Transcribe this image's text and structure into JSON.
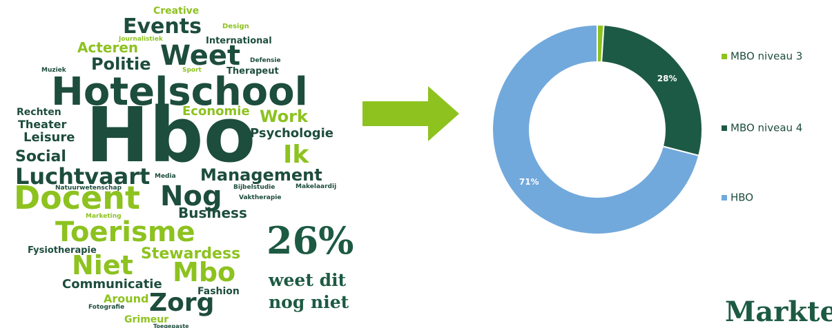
{
  "word_cloud": {
    "words": [
      "Creative",
      "Events",
      "Design",
      "Journalistiek",
      "International",
      "Acteren",
      "Weet",
      "Defensie",
      "Politie",
      "Muziek",
      "Sport",
      "Therapeut",
      "Hotelschool",
      "Rechten",
      "Economie",
      "Work",
      "Theater",
      "Hbo",
      "Leisure",
      "Psychologie",
      "Social",
      "Ik",
      "Luchtvaart",
      "Media",
      "Management",
      "Natuurwetenschap",
      "Nog",
      "Bijbelstudie",
      "Makelaardij",
      "Docent",
      "Vaktherapie",
      "Business",
      "Marketing",
      "Toerisme",
      "Fysiotherapie",
      "Stewardess",
      "Niet",
      "Mbo",
      "Communicatie",
      "Fashion",
      "Around",
      "Zorg",
      "Fotografie",
      "Grimeur",
      "Toegepaste"
    ]
  },
  "stat": {
    "value": "26%",
    "caption": [
      "weet dit",
      "nog niet"
    ]
  },
  "chart_data": {
    "type": "donut",
    "categories": [
      "MBO niveau 3",
      "MBO niveau 4",
      "HBO"
    ],
    "values": [
      1,
      28,
      71
    ],
    "value_labels": [
      "1%",
      "28%",
      "71%"
    ],
    "colors": [
      "#8dc21f",
      "#1d5a46",
      "#72a9dc"
    ]
  },
  "logo": "Markteffect"
}
